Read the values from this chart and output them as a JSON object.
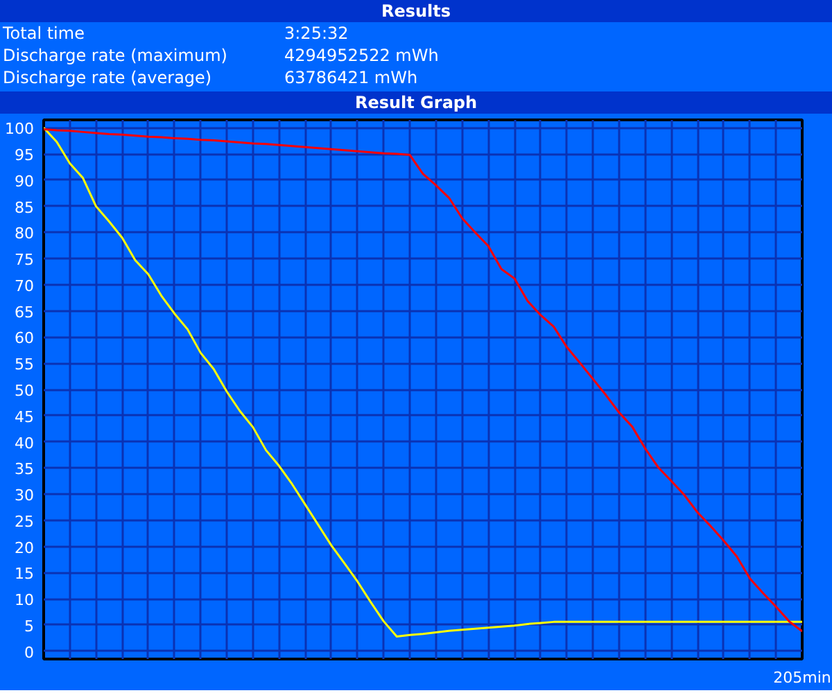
{
  "chart_data": {
    "type": "line",
    "title": "Results",
    "subtitle": "Result Graph",
    "annotations": [
      "Total time",
      "3:25:32",
      "Discharge rate (maximum)",
      "4294952522 mWh",
      "Discharge rate (average)",
      "63786421 mWh"
    ],
    "categories": [
      null,
      null,
      null,
      null,
      null,
      null,
      null,
      null,
      null,
      null,
      null,
      null,
      null,
      null,
      null,
      null,
      null,
      null,
      null,
      null,
      null,
      null,
      null,
      null,
      null,
      null,
      null,
      null,
      null,
      null,
      null,
      null,
      null,
      null,
      null,
      null,
      null,
      null,
      null,
      null,
      null,
      null,
      null,
      null,
      null,
      null,
      null,
      null,
      null,
      null,
      null,
      null,
      null,
      null,
      null,
      null,
      null,
      null,
      "205min"
    ],
    "series": [
      {
        "color": "#ffff00",
        "values": [
          100,
          97.3,
          93.2,
          90.4,
          85,
          82.1,
          79.0,
          74.7,
          72,
          67.9,
          64.5,
          61.5,
          57.0,
          53.9,
          49.6,
          45.9,
          42.8,
          38.4,
          35.4,
          31.9,
          28.0,
          24.1,
          20.2,
          16.8,
          13.3,
          9.4,
          5.7,
          2.8,
          3.1,
          3.3,
          3.6,
          3.9,
          4.1,
          4.3,
          4.5,
          4.7,
          4.9,
          5.2,
          5.4,
          5.6,
          5.6,
          5.6,
          5.6,
          5.6,
          5.6,
          5.6,
          5.6,
          5.6,
          5.6,
          5.6,
          5.6,
          5.6,
          5.6,
          5.6,
          5.6,
          5.6,
          5.6,
          5.6,
          5.6
        ]
      },
      {
        "color": "#ff0000",
        "values": [
          99.7,
          99.5,
          99.4,
          99.2,
          99.0,
          98.8,
          98.7,
          98.5,
          98.3,
          98.2,
          98.0,
          97.9,
          97.7,
          97.6,
          97.4,
          97.2,
          97.0,
          96.9,
          96.7,
          96.5,
          96.3,
          96.1,
          95.9,
          95.7,
          95.5,
          95.3,
          95.1,
          95.0,
          94.8,
          91.2,
          89.0,
          86.6,
          82.7,
          80.0,
          77.4,
          73.0,
          71.2,
          66.9,
          64.2,
          62.0,
          58.1,
          55.1,
          52.0,
          48.9,
          45.6,
          42.9,
          38.7,
          35.1,
          32.5,
          29.8,
          26.5,
          23.9,
          21.1,
          18.1,
          13.9,
          11.1,
          8.5,
          5.7,
          3.8
        ]
      }
    ],
    "ylim": [
      -1.5,
      101.5
    ],
    "yticks": [
      0,
      5,
      10,
      15,
      20,
      25,
      30,
      35,
      40,
      45,
      50,
      55,
      60,
      65,
      70,
      75,
      80,
      85,
      90,
      95,
      100
    ],
    "grid": true,
    "line_style": "solid"
  }
}
